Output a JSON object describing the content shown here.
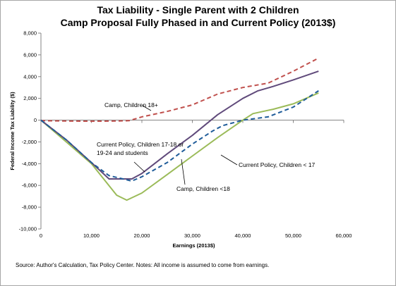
{
  "title_line1": "Tax Liability - Single Parent with 2 Children",
  "title_line2": "Camp Proposal Fully Phased in and Current Policy (2013$)",
  "source_note": "Source: Author's Calculation, Tax Policy Center. Notes: All income is assumed to come from earnings.",
  "chart_data": {
    "type": "line",
    "title": "Tax Liability - Single Parent with 2 Children",
    "subtitle": "Camp Proposal Fully Phased in and Current Policy (2013$)",
    "xlabel": "Earnings (2013$)",
    "ylabel": "Federal Income Tax  Liability ($)",
    "xlim": [
      0,
      60000
    ],
    "ylim": [
      -10000,
      8000
    ],
    "x_ticks": [
      0,
      10000,
      20000,
      30000,
      40000,
      50000,
      60000
    ],
    "x_tick_labels": [
      "0",
      "10,000",
      "20,000",
      "30,000",
      "40,000",
      "50,000",
      "60,000"
    ],
    "y_ticks": [
      8000,
      6000,
      4000,
      2000,
      0,
      -2000,
      -4000,
      -6000,
      -8000,
      -10000
    ],
    "y_tick_labels": [
      "8,000",
      "6,000",
      "4,000",
      "2,000",
      "0",
      "-2,000",
      "-4,000",
      "-6,000",
      "-8,000",
      "-10,000"
    ],
    "grid": false,
    "colors": {
      "camp_18plus": "#c0504d",
      "current_17_18": "#604a7b",
      "current_under17": "#9bbb59",
      "camp_under18": "#1f5c99"
    },
    "series": [
      {
        "key": "camp_18plus",
        "dash": "dashed",
        "x": [
          0,
          5000,
          10000,
          15000,
          17500,
          20000,
          25000,
          30000,
          35000,
          40000,
          45000,
          50000,
          55000
        ],
        "y": [
          -50,
          -80,
          -100,
          -80,
          -50,
          300,
          800,
          1400,
          2400,
          3000,
          3400,
          4500,
          5700
        ]
      },
      {
        "key": "current_17_18",
        "dash": "solid",
        "x": [
          0,
          5000,
          10000,
          13500,
          18000,
          20000,
          25000,
          30000,
          35000,
          40000,
          43000,
          46000,
          50000,
          55000
        ],
        "y": [
          0,
          -1800,
          -3900,
          -5400,
          -5400,
          -4900,
          -3100,
          -1400,
          500,
          2000,
          2700,
          3100,
          3700,
          4500
        ]
      },
      {
        "key": "current_under17",
        "dash": "solid",
        "x": [
          0,
          5000,
          10000,
          15000,
          17000,
          20000,
          25000,
          30000,
          35000,
          40000,
          42000,
          46000,
          50000,
          55000
        ],
        "y": [
          0,
          -2000,
          -4000,
          -6900,
          -7350,
          -6700,
          -5000,
          -3300,
          -1600,
          0,
          600,
          1000,
          1500,
          2500
        ]
      },
      {
        "key": "camp_under18",
        "dash": "dashed",
        "x": [
          0,
          5000,
          10000,
          13500,
          18000,
          20000,
          25000,
          30000,
          34000,
          36000,
          40000,
          45000,
          50000,
          55000
        ],
        "y": [
          0,
          -1800,
          -3900,
          -5100,
          -5600,
          -5200,
          -3900,
          -2200,
          -1000,
          -500,
          0,
          300,
          1200,
          2700
        ]
      }
    ],
    "annotations": [
      {
        "key": "camp_18plus",
        "lines": [
          "Camp, Children 18+"
        ]
      },
      {
        "key": "current_17_18",
        "lines": [
          "Current Policy, Children 17-18 or",
          "19-24 and students"
        ]
      },
      {
        "key": "current_under17",
        "lines": [
          "Current Policy, Children < 17"
        ]
      },
      {
        "key": "camp_under18",
        "lines": [
          "Camp, Children <18"
        ]
      }
    ]
  }
}
